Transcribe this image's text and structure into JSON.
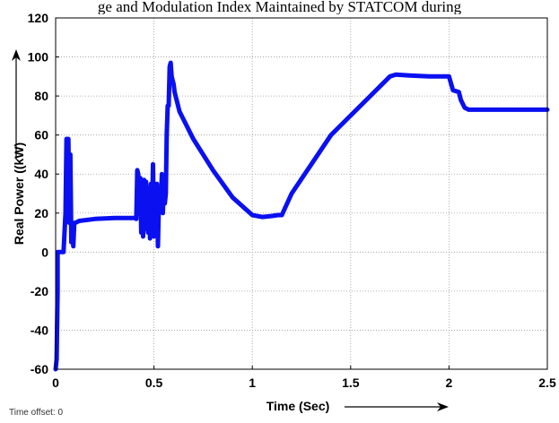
{
  "caption": "ge and Modulation Index Maintained by STATCOM during",
  "time_offset": {
    "label": "Time offset:",
    "value": "0"
  },
  "colors": {
    "series": "#0a10f0",
    "grid": "#9a9a9a",
    "axes": "#000000"
  },
  "chart_data": {
    "type": "line",
    "title": "",
    "xlabel": "Time (Sec)",
    "ylabel": "Real Power ((kW)",
    "xlim": [
      0,
      2.5
    ],
    "ylim": [
      -60,
      120
    ],
    "xticks": [
      0,
      0.5,
      1,
      1.5,
      2,
      2.5
    ],
    "xtick_labels": [
      "0",
      "0.5",
      "1",
      "1.5",
      "2",
      "2.5"
    ],
    "yticks": [
      -60,
      -40,
      -20,
      0,
      20,
      40,
      60,
      80,
      100,
      120
    ],
    "ytick_labels": [
      "-60",
      "-40",
      "-20",
      "0",
      "20",
      "40",
      "60",
      "80",
      "100",
      "120"
    ],
    "grid": true,
    "series": [
      {
        "x": [
          0,
          0.005,
          0.01,
          0.01,
          0.02,
          0.04,
          0.05,
          0.055,
          0.06,
          0.065,
          0.07,
          0.075,
          0.08,
          0.085,
          0.09,
          0.095,
          0.1,
          0.12,
          0.2,
          0.3,
          0.4,
          0.41,
          0.415,
          0.42,
          0.425,
          0.43,
          0.435,
          0.44,
          0.445,
          0.45,
          0.455,
          0.46,
          0.465,
          0.47,
          0.475,
          0.48,
          0.485,
          0.49,
          0.495,
          0.5,
          0.505,
          0.51,
          0.515,
          0.52,
          0.525,
          0.53,
          0.535,
          0.54,
          0.545,
          0.55,
          0.555,
          0.56,
          0.565,
          0.57,
          0.575,
          0.58,
          0.585,
          0.59,
          0.595,
          0.6,
          0.605,
          0.61,
          0.615,
          0.62,
          0.625,
          0.63,
          0.65,
          0.7,
          0.8,
          0.9,
          1.0,
          1.05,
          1.1,
          1.13,
          1.15,
          1.2,
          1.3,
          1.4,
          1.5,
          1.6,
          1.7,
          1.73,
          1.8,
          1.9,
          1.95,
          2.0,
          2.02,
          2.05,
          2.06,
          2.08,
          2.1,
          2.2,
          2.3,
          2.4,
          2.5
        ],
        "y": [
          -60,
          -55,
          -20,
          0,
          0,
          0,
          20,
          58,
          30,
          58,
          15,
          50,
          5,
          15,
          3,
          15,
          15,
          16,
          17,
          17.5,
          17.5,
          17,
          42,
          40,
          20,
          38,
          10,
          37,
          8,
          37,
          12,
          36,
          30,
          10,
          30,
          7,
          35,
          15,
          45,
          8,
          35,
          20,
          35,
          3,
          25,
          30,
          25,
          40,
          20,
          38,
          25,
          30,
          60,
          75,
          75,
          95,
          97,
          90,
          88,
          86,
          82,
          80,
          78,
          76,
          74,
          72,
          68,
          58,
          42,
          28,
          19,
          18,
          18.5,
          19,
          19,
          30,
          45,
          60,
          70,
          80,
          90,
          91,
          90.5,
          90,
          90,
          90,
          83,
          82,
          78,
          74,
          73,
          73,
          73,
          73,
          73
        ]
      }
    ]
  }
}
